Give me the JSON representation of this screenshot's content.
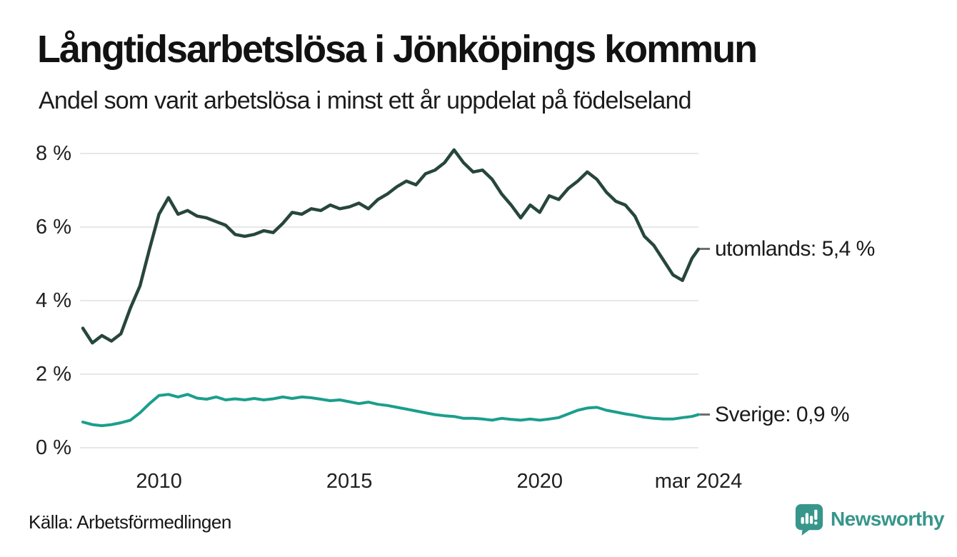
{
  "header": {
    "title": "Långtidsarbetslösa i Jönköpings kommun",
    "subtitle": "Andel som varit arbetslösa i minst ett år uppdelat på födelseland"
  },
  "colors": {
    "utomlands_line": "#27463c",
    "sverige_line": "#1b9e8d",
    "gridline": "#e8e8e8",
    "tick_text": "#202020",
    "legend_dash": "#6e6e6e",
    "brand_teal": "#37968b"
  },
  "chart_data": {
    "type": "line",
    "title": "Långtidsarbetslösa i Jönköpings kommun",
    "subtitle": "Andel som varit arbetslösa i minst ett år uppdelat på födelseland",
    "xlabel": "",
    "ylabel": "",
    "xlim": [
      2008,
      2024.25
    ],
    "ylim": [
      0,
      8
    ],
    "grid": "horizontal",
    "legend_position": "right-of-line-ends",
    "x": [
      2008,
      2008.25,
      2008.5,
      2008.75,
      2009,
      2009.25,
      2009.5,
      2009.75,
      2010,
      2010.25,
      2010.5,
      2010.75,
      2011,
      2011.25,
      2011.5,
      2011.75,
      2012,
      2012.25,
      2012.5,
      2012.75,
      2013,
      2013.25,
      2013.5,
      2013.75,
      2014,
      2014.25,
      2014.5,
      2014.75,
      2015,
      2015.25,
      2015.5,
      2015.75,
      2016,
      2016.25,
      2016.5,
      2016.75,
      2017,
      2017.25,
      2017.5,
      2017.75,
      2018,
      2018.25,
      2018.5,
      2018.75,
      2019,
      2019.25,
      2019.5,
      2019.75,
      2020,
      2020.25,
      2020.5,
      2020.75,
      2021,
      2021.25,
      2021.5,
      2021.75,
      2022,
      2022.25,
      2022.5,
      2022.75,
      2023,
      2023.25,
      2023.5,
      2023.75,
      2024,
      2024.17
    ],
    "y_ticks": [
      {
        "label": "0 %",
        "value": 0
      },
      {
        "label": "2 %",
        "value": 2
      },
      {
        "label": "4 %",
        "value": 4
      },
      {
        "label": "6 %",
        "value": 6
      },
      {
        "label": "8 %",
        "value": 8
      }
    ],
    "x_ticks": [
      {
        "label": "2010",
        "value": 2010
      },
      {
        "label": "2015",
        "value": 2015
      },
      {
        "label": "2020",
        "value": 2020
      },
      {
        "label": "mar 2024",
        "value": 2024.17
      }
    ],
    "series": [
      {
        "name": "utomlands",
        "end_label": "utomlands: 5,4 %",
        "last_value_pct": 5.4,
        "color_key": "utomlands_line",
        "stroke_width": 4.5,
        "values": [
          3.25,
          2.85,
          3.05,
          2.9,
          3.1,
          3.8,
          4.4,
          5.4,
          6.35,
          6.8,
          6.35,
          6.45,
          6.3,
          6.25,
          6.15,
          6.05,
          5.8,
          5.75,
          5.8,
          5.9,
          5.85,
          6.1,
          6.4,
          6.35,
          6.5,
          6.45,
          6.6,
          6.5,
          6.55,
          6.65,
          6.5,
          6.75,
          6.9,
          7.1,
          7.25,
          7.15,
          7.45,
          7.55,
          7.75,
          8.1,
          7.75,
          7.5,
          7.55,
          7.3,
          6.9,
          6.6,
          6.25,
          6.6,
          6.4,
          6.85,
          6.75,
          7.05,
          7.25,
          7.5,
          7.3,
          6.95,
          6.7,
          6.6,
          6.3,
          5.75,
          5.5,
          5.1,
          4.7,
          4.55,
          5.15,
          5.4
        ]
      },
      {
        "name": "Sverige",
        "end_label": "Sverige: 0,9 %",
        "last_value_pct": 0.9,
        "color_key": "sverige_line",
        "stroke_width": 4,
        "values": [
          0.7,
          0.63,
          0.6,
          0.63,
          0.68,
          0.75,
          0.95,
          1.2,
          1.42,
          1.45,
          1.38,
          1.45,
          1.35,
          1.32,
          1.38,
          1.3,
          1.33,
          1.3,
          1.34,
          1.3,
          1.33,
          1.38,
          1.34,
          1.38,
          1.36,
          1.32,
          1.28,
          1.3,
          1.25,
          1.2,
          1.24,
          1.18,
          1.15,
          1.1,
          1.05,
          1.0,
          0.95,
          0.9,
          0.87,
          0.85,
          0.8,
          0.8,
          0.78,
          0.75,
          0.8,
          0.77,
          0.75,
          0.78,
          0.75,
          0.78,
          0.82,
          0.92,
          1.02,
          1.08,
          1.1,
          1.02,
          0.97,
          0.92,
          0.88,
          0.83,
          0.8,
          0.78,
          0.78,
          0.82,
          0.85,
          0.9
        ]
      }
    ]
  },
  "footer": {
    "source": "Källa: Arbetsförmedlingen",
    "brand": "Newsworthy"
  }
}
